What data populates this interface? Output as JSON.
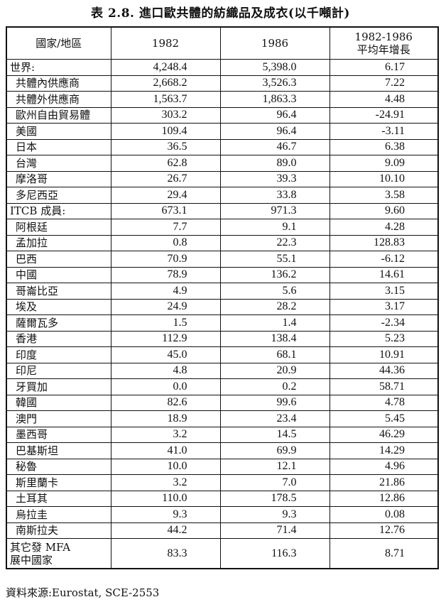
{
  "title": "表 2.8. 進口歐共體的紡織品及成衣(以千噸計)",
  "headers": [
    "國家/地區",
    "1982",
    "1986",
    "1982-1986",
    "平均年增長"
  ],
  "rows": [
    {
      "name": "世界:",
      "top": true,
      "v1982": "4,248.4",
      "v1986": "5,398.0",
      "growth": "6.17"
    },
    {
      "name": "共體內供應商",
      "v1982": "2,668.2",
      "v1986": "3,526.3",
      "growth": "7.22"
    },
    {
      "name": "共體外供應商",
      "v1982": "1,563.7",
      "v1986": "1,863.3",
      "growth": "4.48"
    },
    {
      "name": "歐州自由貿易體",
      "v1982": "303.2",
      "v1986": "96.4",
      "growth": "-24.91"
    },
    {
      "name": "美國",
      "v1982": "109.4",
      "v1986": "96.4",
      "growth": "-3.11"
    },
    {
      "name": "日本",
      "v1982": "36.5",
      "v1986": "46.7",
      "growth": "6.38"
    },
    {
      "name": "台灣",
      "v1982": "62.8",
      "v1986": "89.0",
      "growth": "9.09"
    },
    {
      "name": "摩洛哥",
      "v1982": "26.7",
      "v1986": "39.3",
      "growth": "10.10"
    },
    {
      "name": "多尼西亞",
      "v1982": "29.4",
      "v1986": "33.8",
      "growth": "3.58"
    },
    {
      "name": "ITCB 成員:",
      "top": true,
      "v1982": "673.1",
      "v1986": "971.3",
      "growth": "9.60"
    },
    {
      "name": "阿根廷",
      "v1982": "7.7",
      "v1986": "9.1",
      "growth": "4.28"
    },
    {
      "name": "孟加拉",
      "v1982": "0.8",
      "v1986": "22.3",
      "growth": "128.83"
    },
    {
      "name": "巴西",
      "v1982": "70.9",
      "v1986": "55.1",
      "growth": "-6.12"
    },
    {
      "name": "中國",
      "v1982": "78.9",
      "v1986": "136.2",
      "growth": "14.61"
    },
    {
      "name": "哥崙比亞",
      "v1982": "4.9",
      "v1986": "5.6",
      "growth": "3.15"
    },
    {
      "name": "埃及",
      "v1982": "24.9",
      "v1986": "28.2",
      "growth": "3.17"
    },
    {
      "name": "薩爾瓦多",
      "v1982": "1.5",
      "v1986": "1.4",
      "growth": "-2.34"
    },
    {
      "name": "香港",
      "v1982": "112.9",
      "v1986": "138.4",
      "growth": "5.23"
    },
    {
      "name": "印度",
      "v1982": "45.0",
      "v1986": "68.1",
      "growth": "10.91"
    },
    {
      "name": "印尼",
      "v1982": "4.8",
      "v1986": "20.9",
      "growth": "44.36"
    },
    {
      "name": "牙買加",
      "v1982": "0.0",
      "v1986": "0.2",
      "growth": "58.71"
    },
    {
      "name": "韓國",
      "v1982": "82.6",
      "v1986": "99.6",
      "growth": "4.78"
    },
    {
      "name": "澳門",
      "v1982": "18.9",
      "v1986": "23.4",
      "growth": "5.45"
    },
    {
      "name": "墨西哥",
      "v1982": "3.2",
      "v1986": "14.5",
      "growth": "46.29"
    },
    {
      "name": "巴基斯坦",
      "v1982": "41.0",
      "v1986": "69.9",
      "growth": "14.29"
    },
    {
      "name": "秘魯",
      "v1982": "10.0",
      "v1986": "12.1",
      "growth": "4.96"
    },
    {
      "name": "斯里蘭卡",
      "v1982": "3.2",
      "v1986": "7.0",
      "growth": "21.86"
    },
    {
      "name": "土耳其",
      "v1982": "110.0",
      "v1986": "178.5",
      "growth": "12.86"
    },
    {
      "name": "烏拉圭",
      "v1982": "9.3",
      "v1986": "9.3",
      "growth": "0.08"
    },
    {
      "name": "南斯拉夫",
      "v1982": "44.2",
      "v1986": "71.4",
      "growth": "12.76"
    }
  ],
  "last_row": {
    "name_line1": "其它發 MFA",
    "name_line2": "展中國家",
    "v1982": "83.3",
    "v1986": "116.3",
    "growth": "8.71"
  },
  "footer": "資料來源:Eurostat, SCE-2553"
}
